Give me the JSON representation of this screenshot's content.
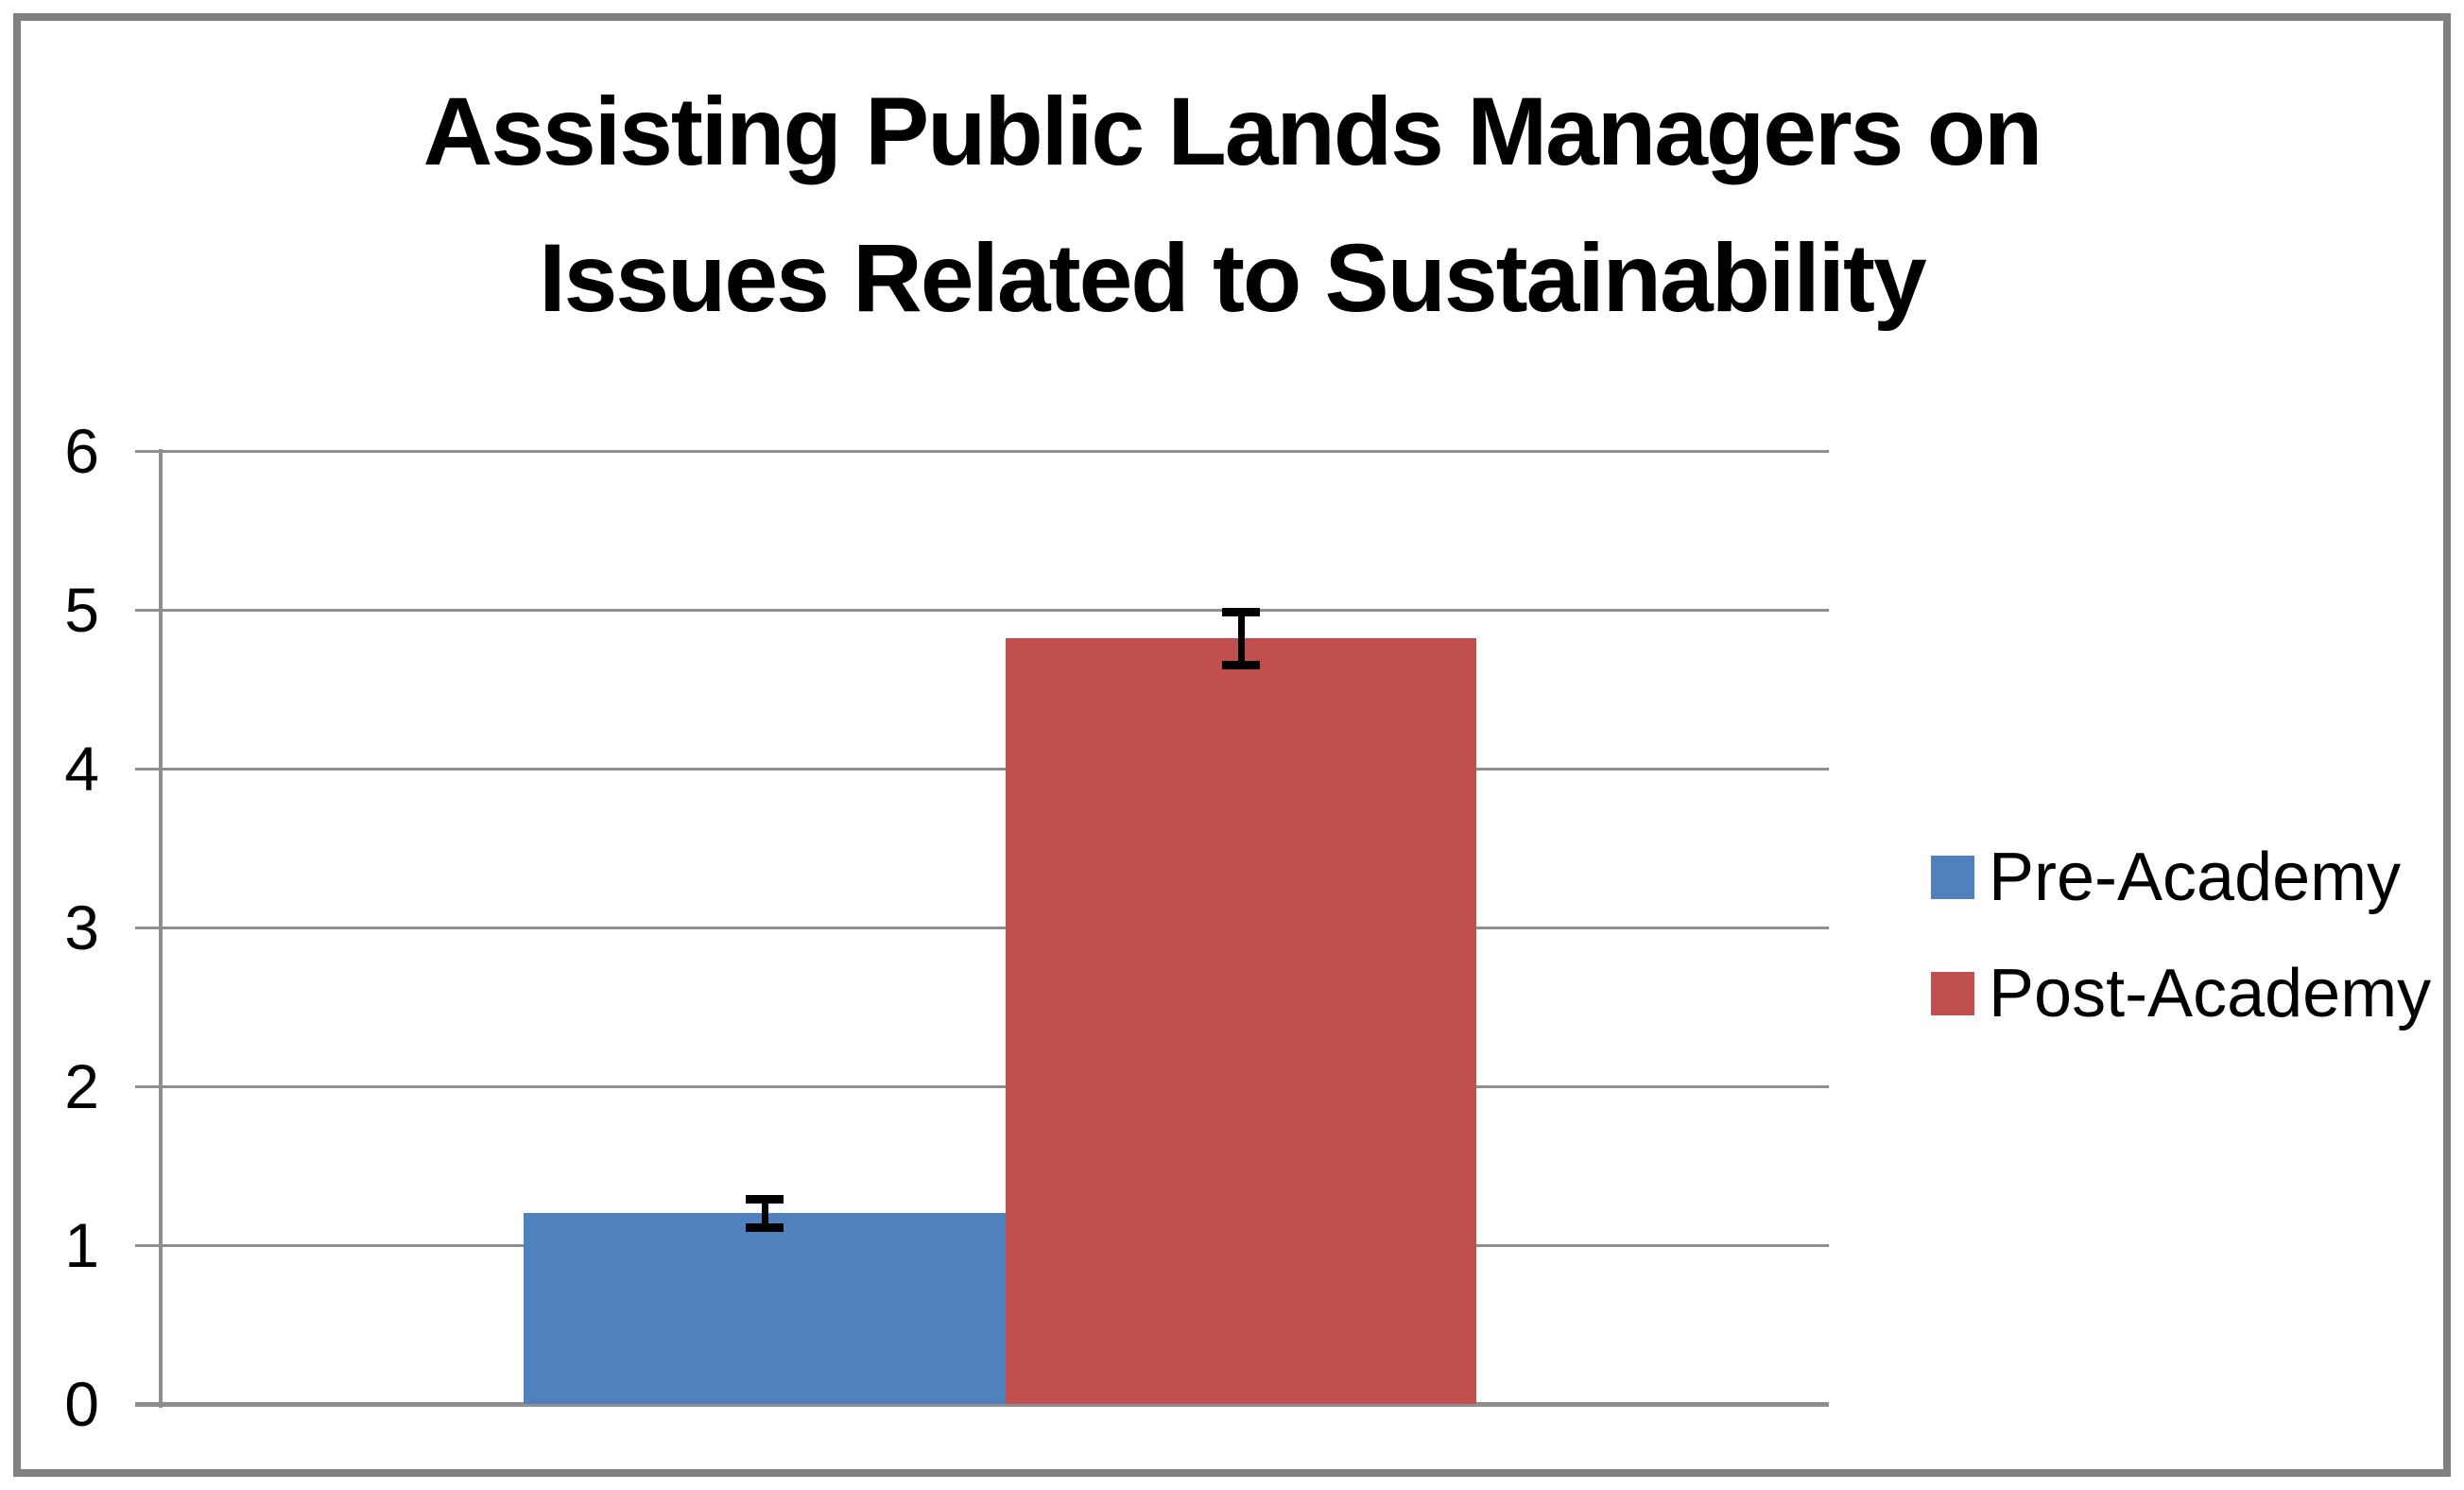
{
  "chart_data": {
    "type": "bar",
    "title": "Assisting Public Lands Managers on Issues Related to Sustainability",
    "title_lines": [
      "Assisting Public Lands Managers on",
      "Issues Related to Sustainability"
    ],
    "categories": [
      ""
    ],
    "series": [
      {
        "name": "Pre-Academy",
        "value": 1.2,
        "error": 0.09,
        "color": "#4F81BD"
      },
      {
        "name": "Post-Academy",
        "value": 4.82,
        "error": 0.17,
        "color": "#C0504D"
      }
    ],
    "ylim": [
      0,
      6
    ],
    "yticks": [
      "0",
      "1",
      "2",
      "3",
      "4",
      "5",
      "6"
    ],
    "grid": true,
    "gridline_color": "#8E8E8E",
    "axis_color": "#8E8E8E",
    "error_bar_color": "#000000",
    "legend_position": "right",
    "xlabel": "",
    "ylabel": "",
    "background": "#FFFFFF",
    "border_color": "#808080",
    "text_color": "#000000"
  }
}
